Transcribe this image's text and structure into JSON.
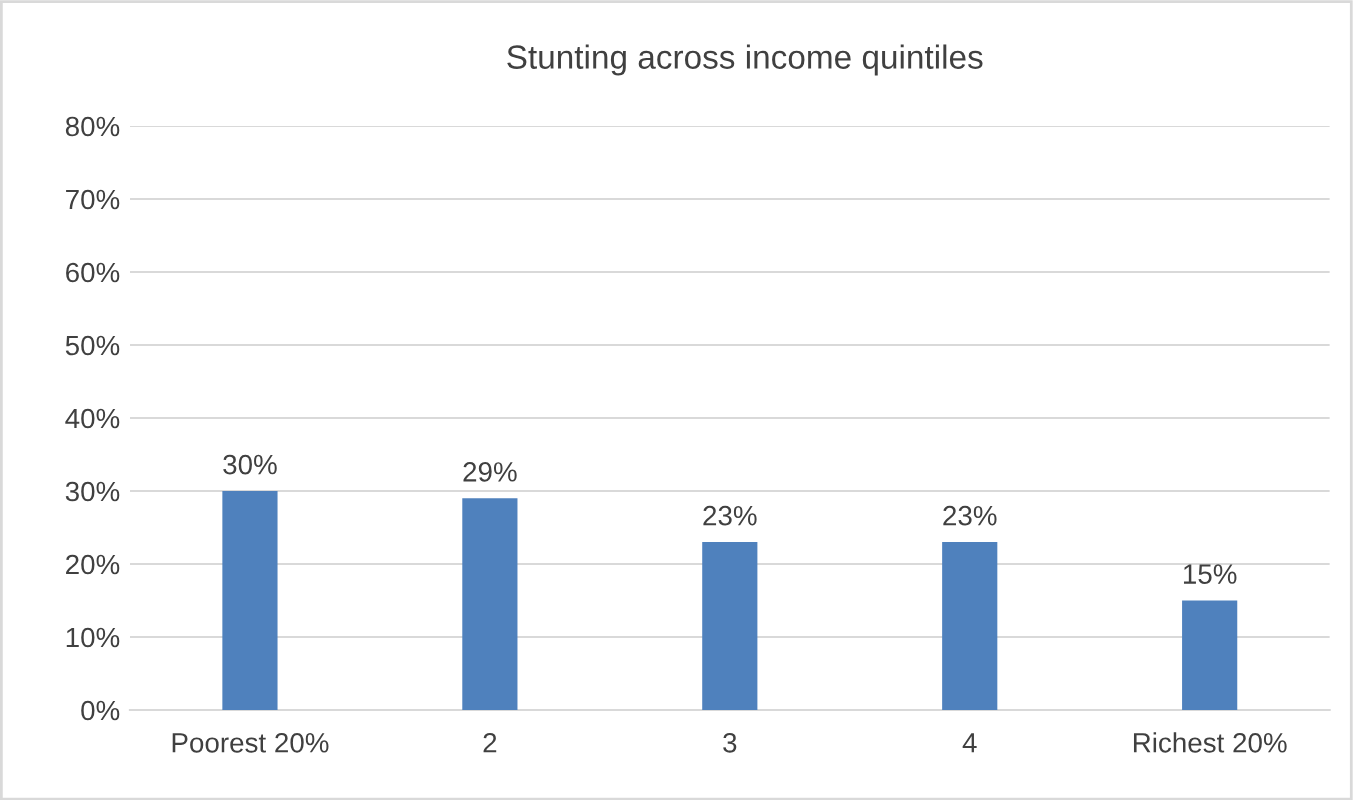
{
  "chart_data": {
    "type": "bar",
    "title": "Stunting across income quintiles",
    "categories": [
      "Poorest 20%",
      "2",
      "3",
      "4",
      "Richest 20%"
    ],
    "values": [
      30,
      29,
      23,
      23,
      15
    ],
    "color": "#4f81bd",
    "value_labels": [
      "30%",
      "29%",
      "23%",
      "23%",
      "15%"
    ],
    "ylim": [
      0,
      80
    ],
    "yticks": [
      {
        "value": 0,
        "label": "0%"
      },
      {
        "value": 10,
        "label": "10%"
      },
      {
        "value": 20,
        "label": "20%"
      },
      {
        "value": 30,
        "label": "30%"
      },
      {
        "value": 40,
        "label": "40%"
      },
      {
        "value": 50,
        "label": "50%"
      },
      {
        "value": 60,
        "label": "60%"
      },
      {
        "value": 70,
        "label": "70%"
      },
      {
        "value": 80,
        "label": "80%"
      }
    ],
    "grid": "y",
    "legend": false
  }
}
